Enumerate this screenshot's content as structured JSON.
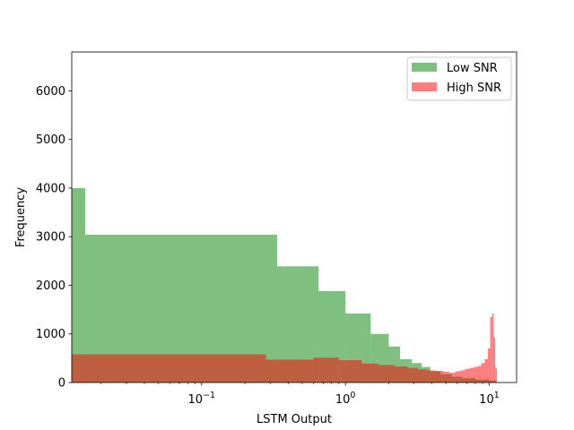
{
  "chart_data": {
    "type": "histogram",
    "xlabel": "LSTM Output",
    "ylabel": "Frequency",
    "xscale": "log",
    "xlim": [
      0.0125,
      15.5
    ],
    "ylim": [
      0,
      6800
    ],
    "yticks": [
      0,
      1000,
      2000,
      3000,
      4000,
      5000,
      6000
    ],
    "xticks": [
      {
        "value": 0.1,
        "base": "10",
        "exp": "−1"
      },
      {
        "value": 1,
        "base": "10",
        "exp": "0"
      },
      {
        "value": 10,
        "base": "10",
        "exp": "1"
      }
    ],
    "legend_position": "top-right",
    "series": [
      {
        "name": "Low SNR",
        "color": "#008000",
        "alpha": 0.5,
        "edges": [
          0.0125,
          0.0155,
          0.335,
          0.65,
          1.0,
          1.5,
          2.0,
          2.4,
          2.9,
          3.4,
          3.9,
          4.6,
          5.5,
          6.5,
          8.0,
          10.0,
          11.2
        ],
        "counts": [
          4000,
          3040,
          2390,
          1880,
          1420,
          1000,
          740,
          480,
          400,
          320,
          230,
          170,
          120,
          90,
          60,
          40
        ]
      },
      {
        "name": "High SNR",
        "color": "#ff0000",
        "alpha": 0.5,
        "edges": [
          0.0125,
          0.28,
          0.6,
          0.9,
          1.3,
          1.7,
          2.2,
          2.7,
          3.2,
          3.7,
          4.2,
          4.8,
          5.3,
          5.8,
          6.3,
          6.8,
          7.3,
          7.8,
          8.3,
          8.8,
          9.3,
          9.8,
          10.15,
          10.5,
          10.75,
          11.0,
          11.3
        ],
        "counts": [
          580,
          470,
          510,
          460,
          390,
          360,
          330,
          300,
          270,
          250,
          240,
          220,
          200,
          230,
          250,
          280,
          300,
          320,
          340,
          400,
          480,
          700,
          1350,
          1420,
          930,
          300
        ]
      }
    ]
  }
}
